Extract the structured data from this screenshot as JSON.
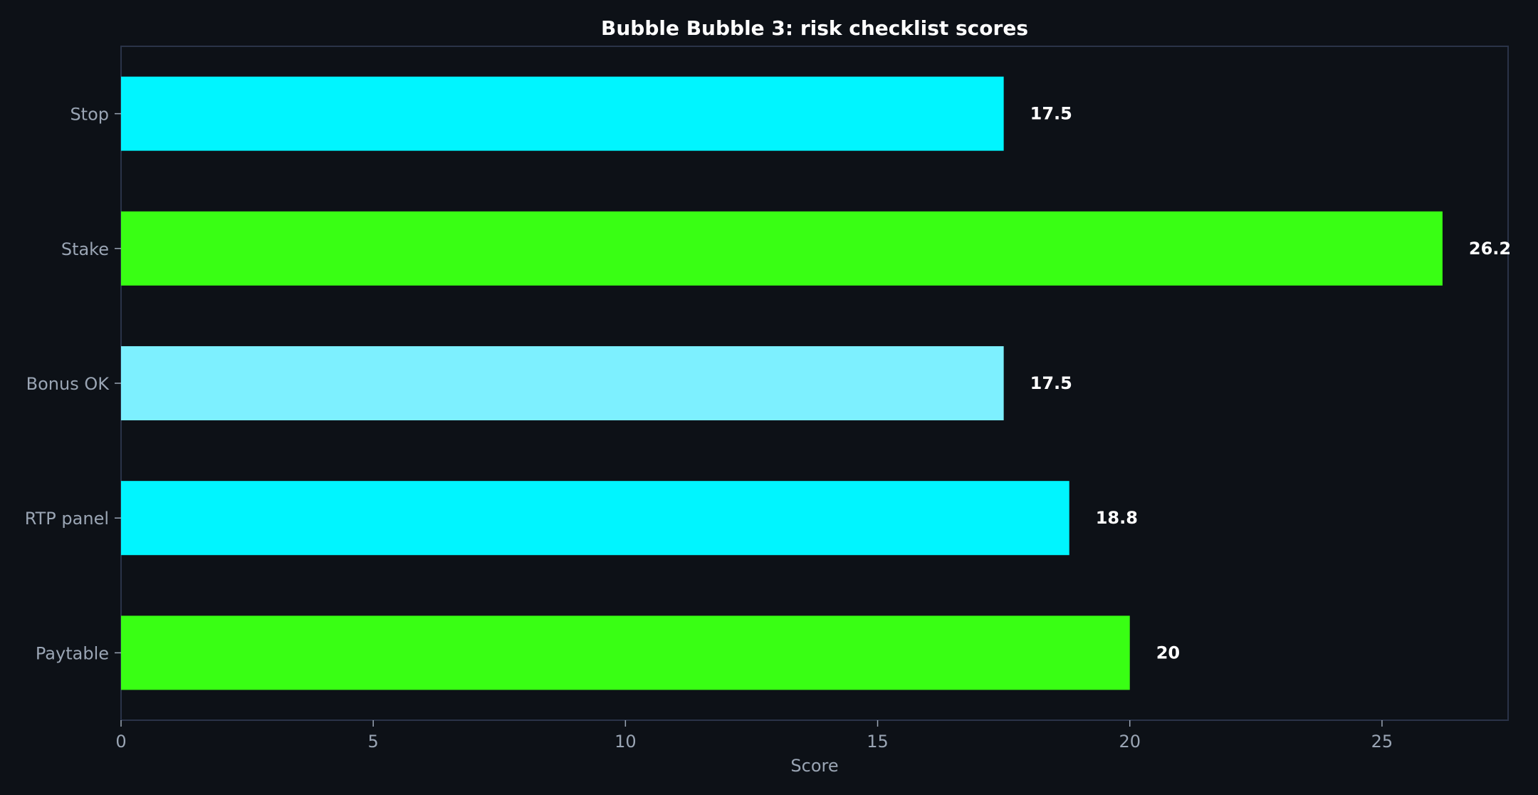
{
  "chart_data": {
    "type": "bar",
    "orientation": "horizontal",
    "title": "Bubble Bubble 3: risk checklist scores",
    "xlabel": "Score",
    "ylabel": "",
    "xlim": [
      0,
      27.5
    ],
    "x_ticks": [
      "0",
      "5",
      "10",
      "15",
      "20",
      "25"
    ],
    "categories": [
      "Stop",
      "Stake",
      "Bonus OK",
      "RTP panel",
      "Paytable"
    ],
    "values": [
      17.5,
      26.2,
      17.5,
      18.8,
      20
    ],
    "value_labels": [
      "17.5",
      "26.2",
      "17.5",
      "18.8",
      "20"
    ],
    "bar_colors": [
      "#00f5ff",
      "#39ff14",
      "#7df0ff",
      "#00f5ff",
      "#39ff14"
    ],
    "grid": false,
    "legend": "none",
    "background_color": "#0d1117",
    "frame_color": "#2a3348"
  }
}
